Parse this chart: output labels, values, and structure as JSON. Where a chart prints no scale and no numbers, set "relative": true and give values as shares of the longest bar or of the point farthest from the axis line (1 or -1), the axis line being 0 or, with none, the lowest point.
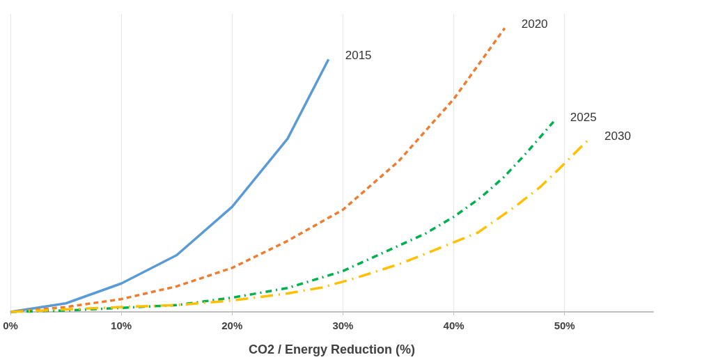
{
  "chart_data": {
    "type": "line",
    "xlabel": "CO2 / Energy Reduction (%)",
    "relative": true,
    "grid": "x",
    "legend": false,
    "marker": "none",
    "xlim": [
      0,
      58
    ],
    "xticks": [
      {
        "value": 0,
        "label": "0%"
      },
      {
        "value": 10,
        "label": "10%"
      },
      {
        "value": 20,
        "label": "20%"
      },
      {
        "value": 30,
        "label": "30%"
      },
      {
        "value": 40,
        "label": "40%"
      },
      {
        "value": 50,
        "label": "50%"
      }
    ],
    "series": [
      {
        "name": "2015",
        "color": "#5b9bd5",
        "line_style": "solid",
        "x": [
          0,
          5,
          10,
          15,
          20,
          25,
          28.7
        ],
        "values": [
          0,
          0.03,
          0.1,
          0.2,
          0.37,
          0.61,
          0.89
        ]
      },
      {
        "name": "2020",
        "color": "#ed7d31",
        "line_style": "dashed",
        "x": [
          0,
          5,
          10,
          15,
          20,
          25,
          30,
          35,
          40,
          44.6
        ],
        "values": [
          0,
          0.017,
          0.045,
          0.09,
          0.155,
          0.25,
          0.36,
          0.53,
          0.75,
          1
        ]
      },
      {
        "name": "2025",
        "color": "#00b050",
        "line_style": "dashdot",
        "x": [
          0,
          5,
          10,
          15,
          20,
          25,
          30,
          37.4,
          40,
          42.4,
          44.5,
          46.4,
          49
        ],
        "values": [
          0,
          0.005,
          0.014,
          0.024,
          0.05,
          0.084,
          0.144,
          0.275,
          0.335,
          0.402,
          0.474,
          0.553,
          0.67
        ]
      },
      {
        "name": "2030",
        "color": "#ffc000",
        "line_style": "longdashdot",
        "x": [
          0,
          10,
          15,
          20,
          25,
          28.1,
          30.8,
          35.2,
          39.7,
          42.2,
          45.5,
          47.8,
          49.4,
          52.1
        ],
        "values": [
          0,
          0.017,
          0.024,
          0.04,
          0.065,
          0.086,
          0.115,
          0.17,
          0.24,
          0.28,
          0.37,
          0.44,
          0.5,
          0.605
        ]
      }
    ]
  }
}
